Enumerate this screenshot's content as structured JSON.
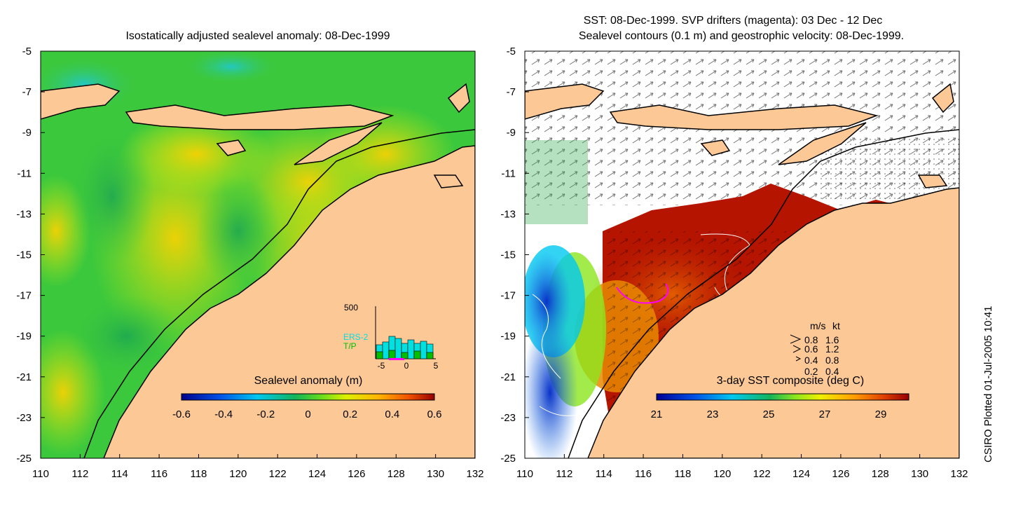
{
  "left_panel": {
    "title": "Isostatically adjusted sealevel anomaly: 08-Dec-1999",
    "colorbar_label": "Sealevel anomaly (m)",
    "colorbar_ticks": [
      "-0.6",
      "-0.4",
      "-0.2",
      "0",
      "0.2",
      "0.4",
      "0.6"
    ],
    "inset": {
      "y_tick": "500",
      "legend": [
        "ERS-2",
        "T/P"
      ],
      "legend_colors": [
        "#00e0e0",
        "#00c000"
      ],
      "x_ticks": [
        "-5",
        "0",
        "5"
      ]
    }
  },
  "right_panel": {
    "title_line1": "SST: 08-Dec-1999. SVP drifters (magenta): 03 Dec - 12 Dec",
    "title_line2": "Sealevel contours (0.1 m) and geostrophic velocity: 08-Dec-1999.",
    "colorbar_label": "3-day SST composite (deg C)",
    "colorbar_ticks": [
      "21",
      "23",
      "25",
      "27",
      "29"
    ],
    "velocity_key": {
      "header_ms": "m/s",
      "header_kt": "kt",
      "rows": [
        {
          "ms": "0.8",
          "kt": "1.6"
        },
        {
          "ms": "0.6",
          "kt": "1.2"
        },
        {
          "ms": "0.4",
          "kt": "0.8"
        },
        {
          "ms": "0.2",
          "kt": "0.4"
        }
      ]
    }
  },
  "axes": {
    "lat_ticks": [
      "-5",
      "-7",
      "-9",
      "-11",
      "-13",
      "-15",
      "-17",
      "-19",
      "-21",
      "-23",
      "-25"
    ],
    "lon_ticks": [
      "110",
      "112",
      "114",
      "116",
      "118",
      "120",
      "122",
      "124",
      "126",
      "128",
      "130",
      "132"
    ]
  },
  "footer": "CSIRO Plotted 01-Jul-2005 10:41",
  "colors": {
    "land": "#fbc896",
    "ocean_green": "#3cc83c",
    "sst_red": "#b41400",
    "drifter": "#ff00ff"
  }
}
